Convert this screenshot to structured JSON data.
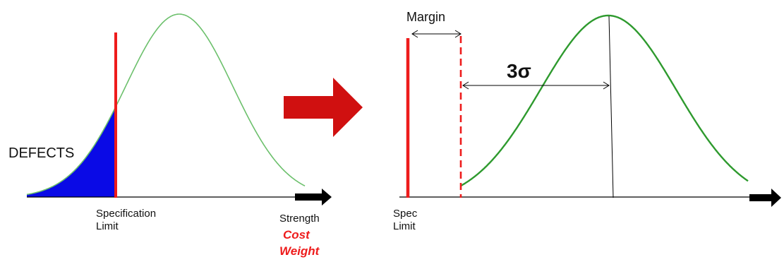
{
  "left_panel": {
    "defects_label": "DEFECTS",
    "spec_limit_label": [
      "Specification",
      "Limit"
    ],
    "axis_label": "Strength",
    "axis_sublabels": [
      "Cost",
      "Weight"
    ]
  },
  "right_panel": {
    "margin_label": "Margin",
    "sigma_label": "3σ",
    "spec_limit_label": [
      "Spec",
      "Limit"
    ]
  },
  "colors": {
    "curve_green": "#2e9a2e",
    "curve_green_light": "#6cc06c",
    "spec_red": "#ee1c1c",
    "defects_blue": "#0a0ae6",
    "arrow_red": "#d01010",
    "axis_black": "#000000"
  }
}
